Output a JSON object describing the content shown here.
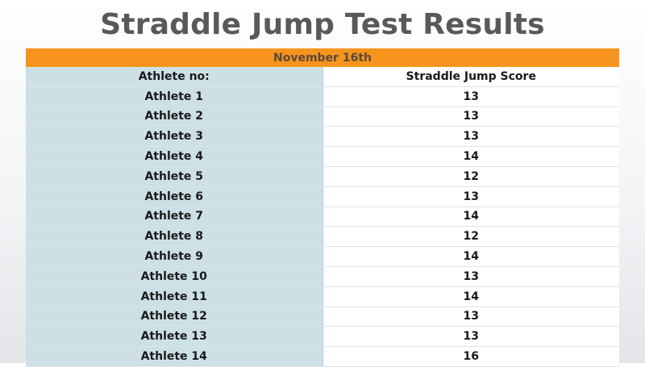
{
  "title": "Straddle Jump Test Results",
  "table": {
    "date": "November 16th",
    "headers": [
      "Athlete no:",
      "Straddle Jump Score"
    ],
    "rows": [
      [
        "Athlete 1",
        "13"
      ],
      [
        "Athlete 2",
        "13"
      ],
      [
        "Athlete 3",
        "13"
      ],
      [
        "Athlete 4",
        "14"
      ],
      [
        "Athlete 5",
        "12"
      ],
      [
        "Athlete 6",
        "13"
      ],
      [
        "Athlete 7",
        "14"
      ],
      [
        "Athlete 8",
        "12"
      ],
      [
        "Athlete 9",
        "14"
      ],
      [
        "Athlete 10",
        "13"
      ],
      [
        "Athlete 11",
        "14"
      ],
      [
        "Athlete 12",
        "13"
      ],
      [
        "Athlete 13",
        "13"
      ],
      [
        "Athlete 14",
        "16"
      ]
    ]
  }
}
